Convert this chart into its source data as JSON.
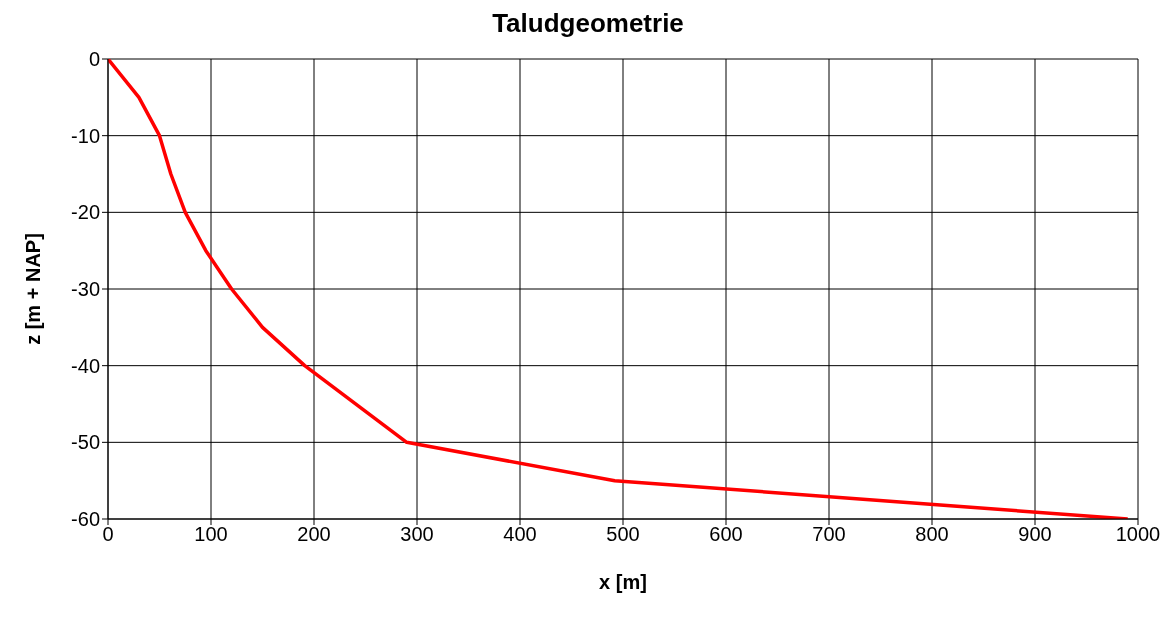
{
  "chart_data": {
    "type": "line",
    "title": "Taludgeometrie",
    "xlabel": "x [m]",
    "ylabel": "z [m + NAP]",
    "x": [
      0,
      30,
      50,
      61,
      75,
      95,
      120,
      150,
      191,
      290,
      492,
      990
    ],
    "series": [
      {
        "color": "#ff0000",
        "values": [
          0,
          -5,
          -10,
          -15,
          -20,
          -25,
          -30,
          -35,
          -40,
          -50,
          -55,
          -60
        ]
      }
    ],
    "xlim": [
      0,
      1000
    ],
    "xticks": [
      0,
      100,
      200,
      300,
      400,
      500,
      600,
      700,
      800,
      900,
      1000
    ],
    "ylim": [
      -60,
      0
    ],
    "yticks": [
      -60,
      -50,
      -40,
      -30,
      -20,
      -10,
      0
    ],
    "grid": true,
    "legend": false,
    "marker": "none",
    "line_style": "solid"
  }
}
